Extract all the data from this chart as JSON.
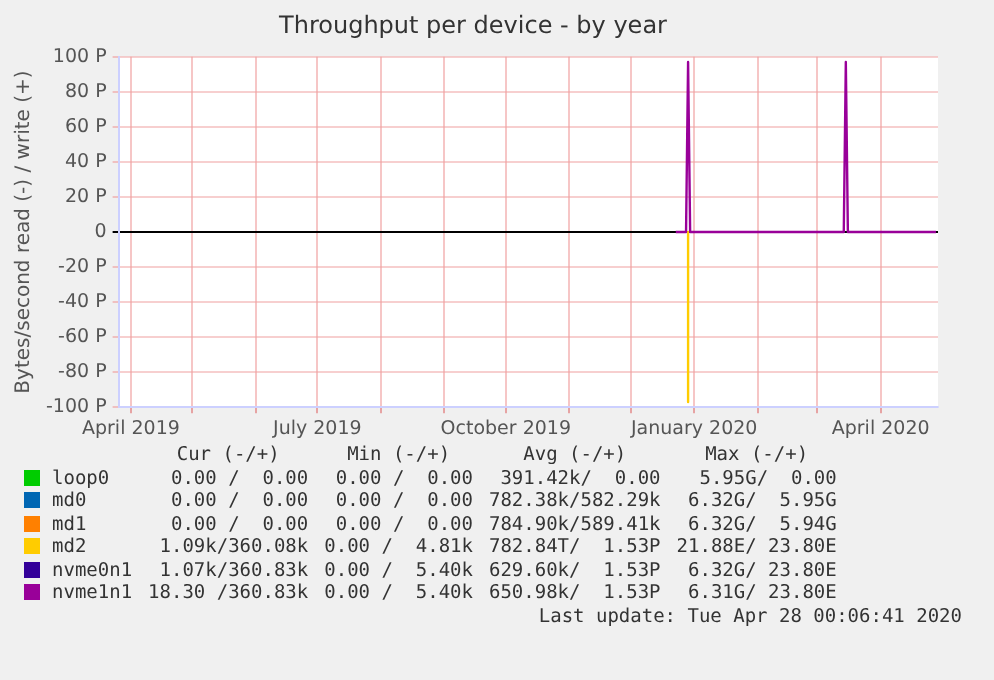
{
  "chart_data": {
    "type": "line",
    "title": "Throughput per device - by year",
    "ylabel": "Bytes/second read (-) / write (+)",
    "x": [
      "2019-12-23",
      "2019-12-28",
      "2019-12-29",
      "2019-12-30",
      "2020-03-14",
      "2020-03-15",
      "2020-03-16",
      "2020-04-28"
    ],
    "xlim": [
      "2019-03-26",
      "2020-04-29"
    ],
    "xticks": [
      {
        "value": "2019-04-01",
        "label": "April 2019"
      },
      {
        "value": "2019-05-01",
        "label": null
      },
      {
        "value": "2019-06-01",
        "label": null
      },
      {
        "value": "2019-07-01",
        "label": "July 2019"
      },
      {
        "value": "2019-08-01",
        "label": null
      },
      {
        "value": "2019-09-01",
        "label": null
      },
      {
        "value": "2019-10-01",
        "label": "October 2019"
      },
      {
        "value": "2019-11-01",
        "label": null
      },
      {
        "value": "2019-12-01",
        "label": null
      },
      {
        "value": "2020-01-01",
        "label": "January 2020"
      },
      {
        "value": "2020-02-01",
        "label": null
      },
      {
        "value": "2020-03-01",
        "label": null
      },
      {
        "value": "2020-04-01",
        "label": "April 2020"
      }
    ],
    "ylim": [
      -100,
      100
    ],
    "yticks": [
      {
        "value": 100,
        "label": "100 P"
      },
      {
        "value": 80,
        "label": "80 P"
      },
      {
        "value": 60,
        "label": "60 P"
      },
      {
        "value": 40,
        "label": "40 P"
      },
      {
        "value": 20,
        "label": "20 P"
      },
      0,
      {
        "value": -20,
        "label": "-20 P"
      },
      {
        "value": -40,
        "label": "-40 P"
      },
      {
        "value": -60,
        "label": "-60 P"
      },
      {
        "value": -80,
        "label": "-80 P"
      },
      {
        "value": -100,
        "label": "-100 P"
      }
    ],
    "grid": true,
    "legend": "bottom",
    "marker": "none",
    "line_style": "solid",
    "series": [
      {
        "name": "loop0",
        "color": "#00cc00",
        "values": [
          null,
          null,
          null,
          null,
          null,
          null,
          null,
          null
        ]
      },
      {
        "name": "md0",
        "color": "#0066b3",
        "values": [
          null,
          null,
          null,
          null,
          null,
          null,
          null,
          null
        ]
      },
      {
        "name": "md1",
        "color": "#ff8000",
        "values": [
          null,
          null,
          null,
          null,
          null,
          null,
          null,
          null
        ]
      },
      {
        "name": "md2",
        "color": "#ffcc00",
        "values": [
          null,
          null,
          null,
          null,
          null,
          null,
          null,
          null
        ]
      },
      {
        "name": "nvme0n1",
        "color": "#330099",
        "values": [
          null,
          null,
          null,
          null,
          null,
          null,
          null,
          null
        ]
      },
      {
        "name": "nvme1n1",
        "color": "#990099",
        "values": [
          0,
          0,
          97,
          0,
          0,
          97,
          0,
          0
        ]
      },
      {
        "color": "#ffcc00",
        "x": [
          "2019-12-29",
          "2019-12-29"
        ],
        "values": [
          0,
          -97
        ]
      }
    ],
    "annotations": [
      "Cur (-/+)",
      "Min (-/+)",
      "Avg (-/+)",
      "Max (-/+)",
      "0.00 /  0.00",
      "0.00 /  0.00",
      "391.42k/  0.00",
      "5.95G/  0.00",
      "0.00 /  0.00",
      "0.00 /  0.00",
      "782.38k/582.29k",
      "6.32G/  5.95G",
      "0.00 /  0.00",
      "0.00 /  0.00",
      "784.90k/589.41k",
      "6.32G/  5.94G",
      "1.09k/360.08k",
      "0.00 /  4.81k",
      "782.84T/  1.53P",
      "21.88E/ 23.80E",
      "1.07k/360.83k",
      "0.00 /  5.40k",
      "629.60k/  1.53P",
      "6.32G/ 23.80E",
      "18.30 /360.83k",
      "0.00 /  5.40k",
      "650.98k/  1.53P",
      "6.31G/ 23.80E",
      "Last update: Tue Apr 28 00:06:41 2020"
    ]
  }
}
